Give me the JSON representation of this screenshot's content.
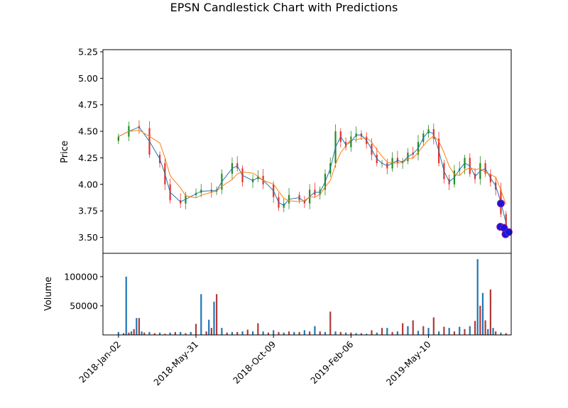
{
  "chart_data": {
    "type": "candlestick",
    "title": "EPSN Candlestick Chart with Predictions",
    "price_panel": {
      "ylabel": "Price",
      "ylim": [
        3.35,
        5.27
      ],
      "yticks": [
        "3.50",
        "3.75",
        "4.00",
        "4.25",
        "4.50",
        "4.75",
        "5.00",
        "5.25"
      ],
      "up_color": "#228b22",
      "down_color": "#e8302a",
      "series": [
        {
          "role": "moving-average-short",
          "color": "#1f77b4"
        },
        {
          "role": "moving-average-long",
          "color": "#ff7f0e"
        }
      ],
      "close_trend": [
        [
          0,
          4.45
        ],
        [
          2,
          4.55
        ],
        [
          4,
          4.53
        ],
        [
          6,
          4.28
        ],
        [
          8,
          4.2
        ],
        [
          9,
          4.0
        ],
        [
          10,
          3.85
        ],
        [
          12,
          3.82
        ],
        [
          13,
          3.9
        ],
        [
          15,
          3.92
        ],
        [
          16,
          3.95
        ],
        [
          18,
          3.93
        ],
        [
          19,
          3.95
        ],
        [
          20,
          4.1
        ],
        [
          22,
          4.2
        ],
        [
          23,
          4.15
        ],
        [
          24,
          4.02
        ],
        [
          26,
          4.05
        ],
        [
          27,
          4.08
        ],
        [
          28,
          4.0
        ],
        [
          30,
          3.88
        ],
        [
          31,
          3.78
        ],
        [
          32,
          3.82
        ],
        [
          33,
          3.9
        ],
        [
          35,
          3.85
        ],
        [
          36,
          3.82
        ],
        [
          37,
          3.95
        ],
        [
          38,
          3.9
        ],
        [
          39,
          3.95
        ],
        [
          40,
          4.1
        ],
        [
          41,
          4.2
        ],
        [
          42,
          4.5
        ],
        [
          43,
          4.4
        ],
        [
          44,
          4.35
        ],
        [
          45,
          4.45
        ],
        [
          46,
          4.48
        ],
        [
          47,
          4.45
        ],
        [
          48,
          4.38
        ],
        [
          49,
          4.28
        ],
        [
          50,
          4.2
        ],
        [
          51,
          4.2
        ],
        [
          52,
          4.15
        ],
        [
          53,
          4.25
        ],
        [
          54,
          4.2
        ],
        [
          55,
          4.22
        ],
        [
          56,
          4.3
        ],
        [
          57,
          4.28
        ],
        [
          58,
          4.4
        ],
        [
          59,
          4.48
        ],
        [
          60,
          4.52
        ],
        [
          61,
          4.43
        ],
        [
          62,
          4.2
        ],
        [
          63,
          4.05
        ],
        [
          64,
          4.0
        ],
        [
          65,
          4.13
        ],
        [
          66,
          4.15
        ],
        [
          67,
          4.25
        ],
        [
          68,
          4.1
        ],
        [
          69,
          4.05
        ],
        [
          70,
          4.2
        ],
        [
          71,
          4.1
        ],
        [
          72,
          4.02
        ],
        [
          73,
          3.95
        ],
        [
          74,
          3.72
        ],
        [
          75,
          3.55
        ]
      ],
      "predictions": [
        3.82,
        3.6,
        3.59,
        3.53,
        3.55
      ]
    },
    "volume_panel": {
      "ylabel": "Volume",
      "ylim": [
        0,
        140000
      ],
      "yticks": [
        "50000",
        "100000"
      ],
      "bars": [
        [
          0,
          5000
        ],
        [
          1,
          3000
        ],
        [
          1.5,
          100000
        ],
        [
          2,
          4000
        ],
        [
          2.5,
          6000
        ],
        [
          3,
          10000
        ],
        [
          3.5,
          29000
        ],
        [
          4,
          29000
        ],
        [
          4.5,
          6000
        ],
        [
          5,
          4000
        ],
        [
          6,
          5000
        ],
        [
          7,
          3000
        ],
        [
          8,
          4000
        ],
        [
          9,
          2000
        ],
        [
          10,
          4000
        ],
        [
          11,
          5000
        ],
        [
          12,
          5000
        ],
        [
          13,
          3000
        ],
        [
          14,
          5000
        ],
        [
          15,
          19000
        ],
        [
          16,
          70000
        ],
        [
          17,
          6000
        ],
        [
          17.5,
          26000
        ],
        [
          18,
          12000
        ],
        [
          18.5,
          57000
        ],
        [
          19,
          70000
        ],
        [
          20,
          12000
        ],
        [
          21,
          4000
        ],
        [
          22,
          5000
        ],
        [
          23,
          5000
        ],
        [
          24,
          6000
        ],
        [
          25,
          9000
        ],
        [
          26,
          6000
        ],
        [
          27,
          20000
        ],
        [
          28,
          6000
        ],
        [
          29,
          4000
        ],
        [
          30,
          8000
        ],
        [
          31,
          5000
        ],
        [
          32,
          4000
        ],
        [
          33,
          6000
        ],
        [
          34,
          5000
        ],
        [
          35,
          5000
        ],
        [
          36,
          8000
        ],
        [
          37,
          6000
        ],
        [
          38,
          15000
        ],
        [
          39,
          6000
        ],
        [
          40,
          5000
        ],
        [
          41,
          40000
        ],
        [
          42,
          6000
        ],
        [
          43,
          5000
        ],
        [
          44,
          4000
        ],
        [
          45,
          4000
        ],
        [
          46,
          3000
        ],
        [
          47,
          3000
        ],
        [
          48,
          2000
        ],
        [
          49,
          8000
        ],
        [
          50,
          4000
        ],
        [
          51,
          12000
        ],
        [
          52,
          12000
        ],
        [
          53,
          5000
        ],
        [
          54,
          6000
        ],
        [
          55,
          20000
        ],
        [
          56,
          15000
        ],
        [
          57,
          25000
        ],
        [
          58,
          7000
        ],
        [
          59,
          15000
        ],
        [
          60,
          12000
        ],
        [
          61,
          30000
        ],
        [
          62,
          6000
        ],
        [
          63,
          14000
        ],
        [
          64,
          12000
        ],
        [
          65,
          6000
        ],
        [
          66,
          14000
        ],
        [
          67,
          10000
        ],
        [
          68,
          15000
        ],
        [
          69,
          24000
        ],
        [
          69.5,
          130000
        ],
        [
          70,
          50000
        ],
        [
          70.5,
          72000
        ],
        [
          71,
          25000
        ],
        [
          71.5,
          10000
        ],
        [
          72,
          78000
        ],
        [
          72.5,
          12000
        ],
        [
          73,
          6000
        ],
        [
          74,
          4000
        ],
        [
          75,
          3000
        ]
      ]
    },
    "xticks": [
      {
        "label": "2018-Jan-02",
        "x": 0
      },
      {
        "label": "2018-May-31",
        "x": 15
      },
      {
        "label": "2018-Oct-09",
        "x": 30
      },
      {
        "label": "2019-Feb-06",
        "x": 45
      },
      {
        "label": "2019-May-10",
        "x": 60
      }
    ],
    "xlim": [
      -3,
      76
    ]
  }
}
